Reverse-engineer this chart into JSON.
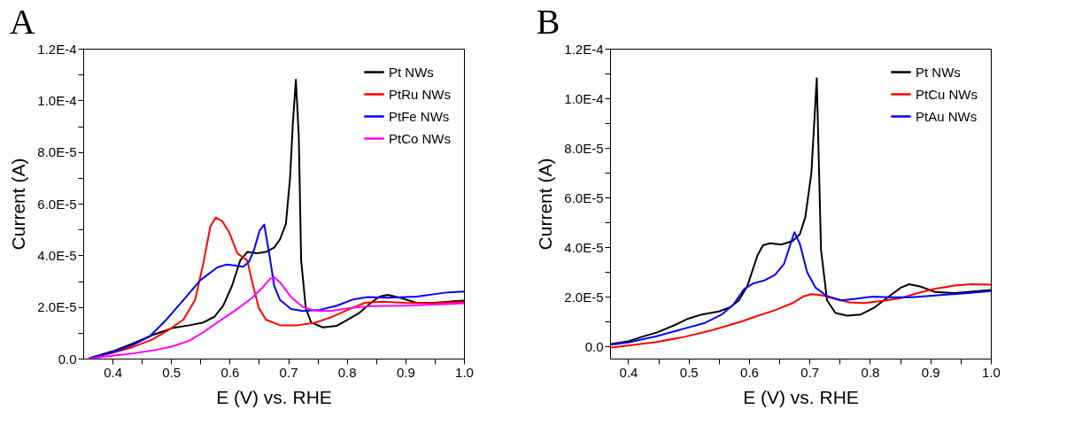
{
  "chart_data": [
    {
      "type": "line",
      "title": "A",
      "xlabel": "E (V) vs. RHE",
      "ylabel": "Current (A)",
      "legend": "top right",
      "line_style": "solid",
      "xlim": [
        0.35,
        1.0
      ],
      "xticks": [
        0.4,
        {
          "value": 0.45,
          "label": null
        },
        0.5,
        {
          "value": 0.55,
          "label": null
        },
        0.6,
        {
          "value": 0.65,
          "label": null
        },
        0.7,
        {
          "value": 0.75,
          "label": null
        },
        0.8,
        {
          "value": 0.85,
          "label": null
        },
        0.9,
        {
          "value": 0.95,
          "label": null
        },
        {
          "value": 1.0,
          "label": "1.0"
        }
      ],
      "ylim": [
        0,
        0.00012
      ],
      "yticks": [
        {
          "value": 0,
          "label": "0.0"
        },
        {
          "value": 1e-05,
          "label": null
        },
        {
          "value": 2e-05,
          "label": "2.0E-5"
        },
        {
          "value": 3e-05,
          "label": null
        },
        {
          "value": 4e-05,
          "label": "4.0E-5"
        },
        {
          "value": 5e-05,
          "label": null
        },
        {
          "value": 6e-05,
          "label": "6.0E-5"
        },
        {
          "value": 7e-05,
          "label": null
        },
        {
          "value": 8e-05,
          "label": "8.0E-5"
        },
        {
          "value": 9e-05,
          "label": null
        },
        {
          "value": 0.0001,
          "label": "1.0E-4"
        },
        {
          "value": 0.00011,
          "label": null
        },
        {
          "value": 0.00012,
          "label": "1.2E-4"
        }
      ],
      "series": [
        {
          "name": "Pt NWs",
          "color": "#000000",
          "x": [
            0.361,
            0.4,
            0.434,
            0.468,
            0.502,
            0.531,
            0.555,
            0.574,
            0.589,
            0.604,
            0.618,
            0.63,
            0.647,
            0.662,
            0.676,
            0.686,
            0.696,
            0.703,
            0.708,
            0.713,
            0.718,
            0.722,
            0.73,
            0.739,
            0.759,
            0.783,
            0.802,
            0.822,
            0.841,
            0.856,
            0.87,
            0.89,
            0.919,
            0.948,
            1.0
          ],
          "values": [
            2e-07,
            2.8e-06,
            5.8e-06,
            9.1e-06,
            1.18e-05,
            1.29e-05,
            1.4e-05,
            1.62e-05,
            2.05e-05,
            2.82e-05,
            3.8e-05,
            4.13e-05,
            4.08e-05,
            4.13e-05,
            4.3e-05,
            4.62e-05,
            5.22e-05,
            6.97e-05,
            9.16e-05,
            0.000108,
            8.61e-05,
            3.8e-05,
            1.95e-05,
            1.4e-05,
            1.21e-05,
            1.27e-05,
            1.51e-05,
            1.78e-05,
            2.16e-05,
            2.4e-05,
            2.47e-05,
            2.36e-05,
            2.16e-05,
            2.16e-05,
            2.25e-05
          ]
        },
        {
          "name": "PtRu NWs",
          "color": "#ff0000",
          "x": [
            0.361,
            0.4,
            0.434,
            0.468,
            0.497,
            0.521,
            0.541,
            0.555,
            0.567,
            0.576,
            0.587,
            0.599,
            0.613,
            0.63,
            0.64,
            0.65,
            0.662,
            0.686,
            0.715,
            0.744,
            0.773,
            0.802,
            0.831,
            0.86,
            0.899,
            0.948,
            1.0
          ],
          "values": [
            2e-07,
            2.2e-06,
            4.4e-06,
            7.4e-06,
            1.13e-05,
            1.51e-05,
            2.27e-05,
            3.69e-05,
            5.11e-05,
            5.46e-05,
            5.33e-05,
            4.9e-05,
            4.08e-05,
            3.8e-05,
            2.82e-05,
            1.95e-05,
            1.51e-05,
            1.29e-05,
            1.29e-05,
            1.38e-05,
            1.6e-05,
            1.89e-05,
            2.16e-05,
            2.2e-05,
            2.16e-05,
            2.14e-05,
            2.2e-05
          ]
        },
        {
          "name": "PtFe NWs",
          "color": "#0000ff",
          "x": [
            0.361,
            0.4,
            0.434,
            0.463,
            0.492,
            0.521,
            0.55,
            0.579,
            0.594,
            0.608,
            0.623,
            0.633,
            0.642,
            0.651,
            0.659,
            0.667,
            0.676,
            0.686,
            0.705,
            0.725,
            0.754,
            0.783,
            0.812,
            0.836,
            0.87,
            0.919,
            0.967,
            1.0
          ],
          "values": [
            2e-07,
            2.5e-06,
            5.2e-06,
            8.5e-06,
            1.51e-05,
            2.27e-05,
            3.04e-05,
            3.53e-05,
            3.64e-05,
            3.61e-05,
            3.56e-05,
            3.75e-05,
            4.24e-05,
            4.95e-05,
            5.19e-05,
            4.13e-05,
            2.82e-05,
            2.27e-05,
            1.92e-05,
            1.84e-05,
            1.89e-05,
            2.05e-05,
            2.3e-05,
            2.38e-05,
            2.36e-05,
            2.4e-05,
            2.55e-05,
            2.6e-05
          ]
        },
        {
          "name": "PtCo NWs",
          "color": "#ff00ff",
          "x": [
            0.361,
            0.4,
            0.434,
            0.473,
            0.502,
            0.531,
            0.555,
            0.579,
            0.608,
            0.637,
            0.657,
            0.669,
            0.676,
            0.686,
            0.705,
            0.725,
            0.744,
            0.773,
            0.802,
            0.841,
            0.894,
            0.948,
            1.0
          ],
          "values": [
            1e-07,
            1.1e-06,
            2e-06,
            3.3e-06,
            4.7e-06,
            6.9e-06,
            1.02e-05,
            1.4e-05,
            1.84e-05,
            2.33e-05,
            2.77e-05,
            3.09e-05,
            3.15e-05,
            2.95e-05,
            2.38e-05,
            2e-05,
            1.86e-05,
            1.84e-05,
            1.95e-05,
            2.03e-05,
            2.05e-05,
            2.09e-05,
            2.14e-05
          ]
        }
      ]
    },
    {
      "type": "line",
      "title": "B",
      "xlabel": "E (V) vs. RHE",
      "ylabel": "Current (A)",
      "legend": "top right",
      "line_style": "solid",
      "xlim": [
        0.37,
        1.0
      ],
      "xticks": [
        0.4,
        {
          "value": 0.45,
          "label": null
        },
        0.5,
        {
          "value": 0.55,
          "label": null
        },
        0.6,
        {
          "value": 0.65,
          "label": null
        },
        0.7,
        {
          "value": 0.75,
          "label": null
        },
        0.8,
        {
          "value": 0.85,
          "label": null
        },
        0.9,
        {
          "value": 0.95,
          "label": null
        },
        {
          "value": 1.0,
          "label": "1.0"
        }
      ],
      "ylim": [
        -5e-06,
        0.00012
      ],
      "yticks": [
        {
          "value": 0,
          "label": "0.0"
        },
        {
          "value": 1e-05,
          "label": null
        },
        {
          "value": 2e-05,
          "label": "2.0E-5"
        },
        {
          "value": 3e-05,
          "label": null
        },
        {
          "value": 4e-05,
          "label": "4.0E-5"
        },
        {
          "value": 5e-05,
          "label": null
        },
        {
          "value": 6e-05,
          "label": "6.0E-5"
        },
        {
          "value": 7e-05,
          "label": null
        },
        {
          "value": 8e-05,
          "label": "8.0E-5"
        },
        {
          "value": 9e-05,
          "label": null
        },
        {
          "value": 0.0001,
          "label": "1.0E-4"
        },
        {
          "value": 0.00011,
          "label": null
        },
        {
          "value": 0.00012,
          "label": "1.2E-4"
        }
      ],
      "series": [
        {
          "name": "Pt NWs",
          "color": "#000000",
          "x": [
            0.372,
            0.4,
            0.423,
            0.447,
            0.475,
            0.499,
            0.522,
            0.55,
            0.569,
            0.583,
            0.597,
            0.614,
            0.623,
            0.635,
            0.653,
            0.672,
            0.684,
            0.693,
            0.703,
            0.712,
            0.719,
            0.729,
            0.743,
            0.762,
            0.785,
            0.808,
            0.832,
            0.851,
            0.865,
            0.884,
            0.907,
            0.94,
            1.0
          ],
          "values": [
            9e-07,
            2e-06,
            3.8e-06,
            5.5e-06,
            8.3e-06,
            1.11e-05,
            1.28e-05,
            1.4e-05,
            1.57e-05,
            1.85e-05,
            2.42e-05,
            3.67e-05,
            4.07e-05,
            4.15e-05,
            4.1e-05,
            4.24e-05,
            4.52e-05,
            5.2e-05,
            6.97e-05,
            0.000108,
            3.9e-05,
            1.85e-05,
            1.34e-05,
            1.23e-05,
            1.28e-05,
            1.57e-05,
            2.02e-05,
            2.36e-05,
            2.5e-05,
            2.4e-05,
            2.19e-05,
            2.14e-05,
            2.27e-05
          ]
        },
        {
          "name": "PtCu NWs",
          "color": "#ff0000",
          "x": [
            0.372,
            0.4,
            0.447,
            0.494,
            0.541,
            0.588,
            0.615,
            0.643,
            0.672,
            0.691,
            0.703,
            0.719,
            0.743,
            0.766,
            0.79,
            0.822,
            0.851,
            0.879,
            0.907,
            0.94,
            0.968,
            1.0
          ],
          "values": [
            -5e-07,
            3e-07,
            1.7e-06,
            3.8e-06,
            6.6e-06,
            1e-05,
            1.23e-05,
            1.45e-05,
            1.74e-05,
            2.02e-05,
            2.1e-05,
            2.06e-05,
            1.91e-05,
            1.77e-05,
            1.74e-05,
            1.83e-05,
            1.94e-05,
            2.14e-05,
            2.31e-05,
            2.45e-05,
            2.5e-05,
            2.48e-05
          ]
        },
        {
          "name": "PtAu NWs",
          "color": "#0000ff",
          "x": [
            0.372,
            0.4,
            0.447,
            0.494,
            0.527,
            0.555,
            0.574,
            0.592,
            0.607,
            0.625,
            0.643,
            0.658,
            0.667,
            0.675,
            0.684,
            0.696,
            0.71,
            0.729,
            0.752,
            0.776,
            0.804,
            0.832,
            0.869,
            0.916,
            0.963,
            1.0
          ],
          "values": [
            6e-07,
            1.5e-06,
            4e-06,
            7.2e-06,
            9.4e-06,
            1.28e-05,
            1.68e-05,
            2.31e-05,
            2.53e-05,
            2.65e-05,
            2.88e-05,
            3.33e-05,
            4.01e-05,
            4.6e-05,
            4.13e-05,
            2.99e-05,
            2.36e-05,
            2.02e-05,
            1.85e-05,
            1.91e-05,
            2e-05,
            1.97e-05,
            1.97e-05,
            2.06e-05,
            2.14e-05,
            2.22e-05
          ]
        }
      ]
    }
  ]
}
